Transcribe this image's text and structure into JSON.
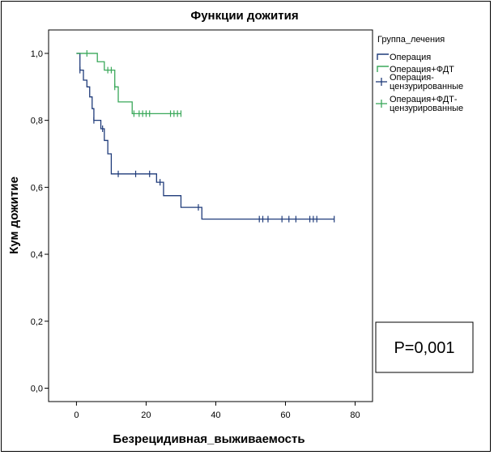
{
  "chart_data": {
    "type": "line",
    "subtype": "kaplan-meier",
    "title": "Функции дожития",
    "xlabel": "Безрецидивная_выживаемость",
    "ylabel": "Кум дожитие",
    "xlim": [
      -8,
      85
    ],
    "ylim": [
      -0.04,
      1.07
    ],
    "x_ticks": [
      0,
      20,
      40,
      60,
      80
    ],
    "y_ticks": [
      0.0,
      0.2,
      0.4,
      0.6,
      0.8,
      1.0
    ],
    "y_tick_labels": [
      "0,0",
      "0,2",
      "0,4",
      "0,6",
      "0,8",
      "1,0"
    ],
    "grid": false,
    "legend": {
      "title": "Группа_лечения",
      "placement": "right",
      "entries": [
        {
          "label": "Операция",
          "kind": "line",
          "color": "#1f3b7a"
        },
        {
          "label": "Операция+ФДТ",
          "kind": "line",
          "color": "#3aa85a"
        },
        {
          "label_lines": [
            "Операция-",
            "цензурированные"
          ],
          "kind": "censor",
          "color": "#1f3b7a"
        },
        {
          "label_lines": [
            "Операция+ФДТ-",
            "цензурированные"
          ],
          "kind": "censor",
          "color": "#3aa85a"
        }
      ]
    },
    "annotation": "P=0,001",
    "series": [
      {
        "name": "Операция",
        "color": "#1f3b7a",
        "steps": [
          [
            0,
            1.0
          ],
          [
            1,
            0.95
          ],
          [
            2,
            0.92
          ],
          [
            3,
            0.9
          ],
          [
            3.8,
            0.87
          ],
          [
            4.5,
            0.835
          ],
          [
            5,
            0.8
          ],
          [
            7,
            0.775
          ],
          [
            8,
            0.74
          ],
          [
            9,
            0.7
          ],
          [
            10,
            0.64
          ],
          [
            23,
            0.615
          ],
          [
            25,
            0.575
          ],
          [
            30,
            0.54
          ],
          [
            36,
            0.505
          ],
          [
            74,
            0.505
          ]
        ],
        "censored": [
          [
            1,
            0.95
          ],
          [
            5,
            0.8
          ],
          [
            7.5,
            0.775
          ],
          [
            12,
            0.64
          ],
          [
            17,
            0.64
          ],
          [
            21,
            0.64
          ],
          [
            24,
            0.615
          ],
          [
            35,
            0.54
          ],
          [
            52.5,
            0.505
          ],
          [
            53.5,
            0.505
          ],
          [
            55,
            0.505
          ],
          [
            59,
            0.505
          ],
          [
            61,
            0.505
          ],
          [
            63,
            0.505
          ],
          [
            67,
            0.505
          ],
          [
            68,
            0.505
          ],
          [
            69,
            0.505
          ],
          [
            74,
            0.505
          ]
        ]
      },
      {
        "name": "Операция+ФДТ",
        "color": "#3aa85a",
        "steps": [
          [
            0,
            1.0
          ],
          [
            6,
            0.975
          ],
          [
            8,
            0.95
          ],
          [
            11,
            0.9
          ],
          [
            12,
            0.855
          ],
          [
            16,
            0.82
          ],
          [
            30,
            0.82
          ]
        ],
        "censored": [
          [
            3,
            1.0
          ],
          [
            9,
            0.95
          ],
          [
            10,
            0.95
          ],
          [
            11,
            0.9
          ],
          [
            16.5,
            0.82
          ],
          [
            18,
            0.82
          ],
          [
            19,
            0.82
          ],
          [
            20,
            0.82
          ],
          [
            21,
            0.82
          ],
          [
            27,
            0.82
          ],
          [
            28,
            0.82
          ],
          [
            29,
            0.82
          ],
          [
            30,
            0.82
          ]
        ]
      }
    ]
  }
}
